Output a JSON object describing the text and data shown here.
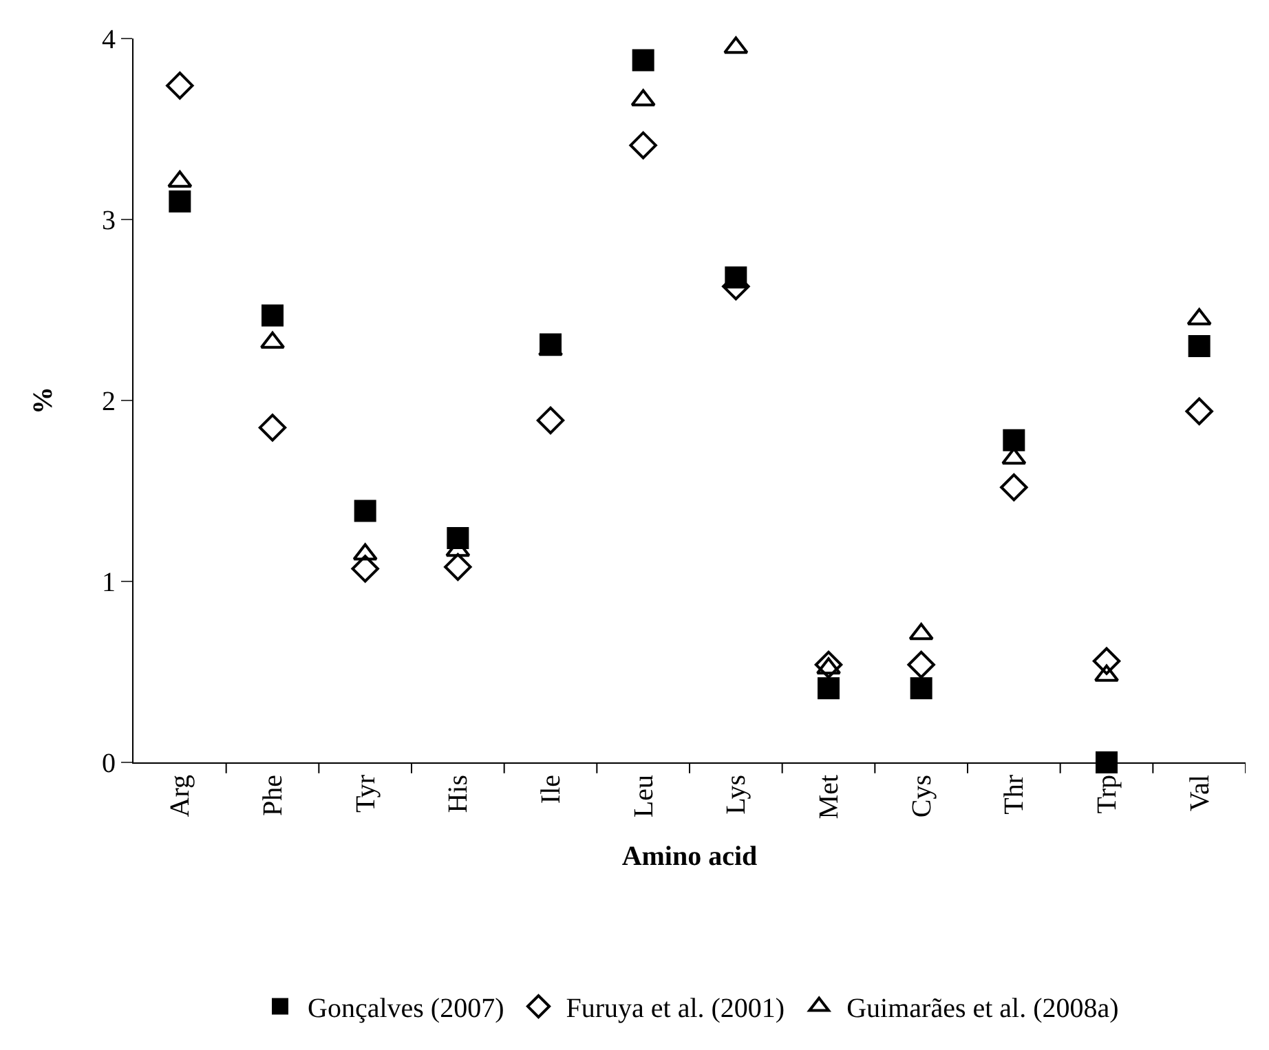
{
  "chart_data": {
    "type": "scatter",
    "xlabel": "Amino acid",
    "ylabel": "%",
    "categories": [
      "Arg",
      "Phe",
      "Tyr",
      "His",
      "Ile",
      "Leu",
      "Lys",
      "Met",
      "Cys",
      "Thr",
      "Trp",
      "Val"
    ],
    "series": [
      {
        "name": "Gonçalves (2007)",
        "color": "#000000",
        "marker": "square",
        "values": [
          3.1,
          2.47,
          1.39,
          1.24,
          2.31,
          3.88,
          2.68,
          0.41,
          0.41,
          1.78,
          0,
          2.3
        ]
      },
      {
        "name": "Furuya et al. (2001)",
        "color": "#000000",
        "marker": "diamond",
        "values": [
          3.74,
          1.85,
          1.07,
          1.08,
          1.89,
          3.41,
          2.63,
          0.54,
          0.54,
          1.52,
          0.56,
          1.94
        ]
      },
      {
        "name": "Guimarães et al. (2008a)",
        "color": "#000000",
        "marker": "triangle",
        "values": [
          3.21,
          2.32,
          1.15,
          1.17,
          2.28,
          3.66,
          3.95,
          0.52,
          0.71,
          1.68,
          0.48,
          2.45
        ]
      }
    ],
    "ylim": [
      0,
      4
    ],
    "yticks": [
      0,
      1,
      2,
      3,
      4
    ],
    "grid": false,
    "legend": "bottom"
  }
}
